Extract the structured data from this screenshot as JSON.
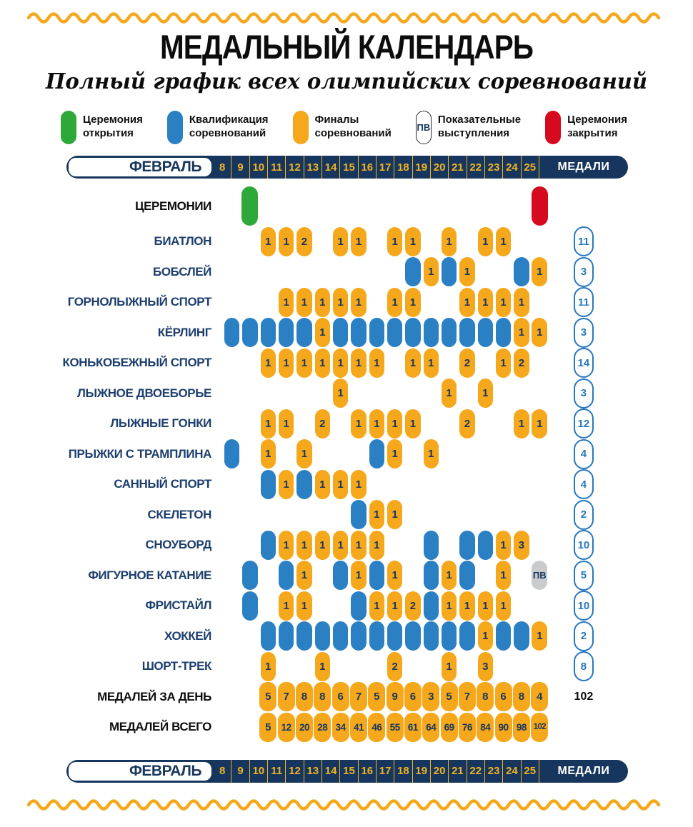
{
  "title": "МЕДАЛЬНЫЙ КАЛЕНДАРЬ",
  "subtitle": "Полный график всех олимпийских соревнований",
  "legend": {
    "items": [
      {
        "type": "open",
        "color": "#2EA838",
        "line1": "Церемония",
        "line2": "открытия"
      },
      {
        "type": "qual",
        "color": "#2B80C4",
        "line1": "Квалификация",
        "line2": "соревнований"
      },
      {
        "type": "fin",
        "color": "#F5A81C",
        "line1": "Финалы",
        "line2": "соревнований"
      },
      {
        "type": "pv",
        "badge": "ПВ",
        "line1": "Показательные",
        "line2": "выступления"
      },
      {
        "type": "close",
        "color": "#D50A1E",
        "line1": "Церемония",
        "line2": "закрытия"
      }
    ]
  },
  "header": {
    "month": "ФЕВРАЛЬ",
    "days": [
      "8",
      "9",
      "10",
      "11",
      "12",
      "13",
      "14",
      "15",
      "16",
      "17",
      "18",
      "19",
      "20",
      "21",
      "22",
      "23",
      "24",
      "25"
    ],
    "medals_label": "МЕДАЛИ"
  },
  "colors": {
    "navy": "#17365D",
    "gold": "#F5A81C",
    "blue": "#2B80C4",
    "green": "#2EA838",
    "red": "#D50A1E",
    "grey": "#C9CBCD",
    "medal_badge_blue": "#2878BE"
  },
  "chart_data": {
    "type": "table",
    "x_days": [
      8,
      9,
      10,
      11,
      12,
      13,
      14,
      15,
      16,
      17,
      18,
      19,
      20,
      21,
      22,
      23,
      24,
      25
    ],
    "cell_types": {
      "open": "Церемония открытия",
      "qual": "Квалификация соревнований",
      "fin": "Финалы соревнований",
      "pv": "Показательные выступления",
      "close": "Церемония закрытия"
    },
    "pv_label": "ПВ",
    "rows": [
      {
        "label": "ЦЕРЕМОНИИ",
        "dark": true,
        "tall": true,
        "medal": "",
        "cells": [
          {
            "d": 9,
            "t": "open"
          },
          {
            "d": 25,
            "t": "close"
          }
        ]
      },
      {
        "label": "БИАТЛОН",
        "medal": "11",
        "cells": [
          {
            "d": 10,
            "t": "fin",
            "v": "1"
          },
          {
            "d": 11,
            "t": "fin",
            "v": "1"
          },
          {
            "d": 12,
            "t": "fin",
            "v": "2"
          },
          {
            "d": 14,
            "t": "fin",
            "v": "1"
          },
          {
            "d": 15,
            "t": "fin",
            "v": "1"
          },
          {
            "d": 17,
            "t": "fin",
            "v": "1"
          },
          {
            "d": 18,
            "t": "fin",
            "v": "1"
          },
          {
            "d": 20,
            "t": "fin",
            "v": "1"
          },
          {
            "d": 22,
            "t": "fin",
            "v": "1"
          },
          {
            "d": 23,
            "t": "fin",
            "v": "1"
          }
        ]
      },
      {
        "label": "БОБСЛЕЙ",
        "medal": "3",
        "cells": [
          {
            "d": 18,
            "t": "qual"
          },
          {
            "d": 19,
            "t": "fin",
            "v": "1"
          },
          {
            "d": 20,
            "t": "qual"
          },
          {
            "d": 21,
            "t": "fin",
            "v": "1"
          },
          {
            "d": 24,
            "t": "qual"
          },
          {
            "d": 25,
            "t": "fin",
            "v": "1"
          }
        ]
      },
      {
        "label": "ГОРНОЛЫЖНЫЙ СПОРТ",
        "medal": "11",
        "cells": [
          {
            "d": 11,
            "t": "fin",
            "v": "1"
          },
          {
            "d": 12,
            "t": "fin",
            "v": "1"
          },
          {
            "d": 13,
            "t": "fin",
            "v": "1"
          },
          {
            "d": 14,
            "t": "fin",
            "v": "1"
          },
          {
            "d": 15,
            "t": "fin",
            "v": "1"
          },
          {
            "d": 17,
            "t": "fin",
            "v": "1"
          },
          {
            "d": 18,
            "t": "fin",
            "v": "1"
          },
          {
            "d": 21,
            "t": "fin",
            "v": "1"
          },
          {
            "d": 22,
            "t": "fin",
            "v": "1"
          },
          {
            "d": 23,
            "t": "fin",
            "v": "1"
          },
          {
            "d": 24,
            "t": "fin",
            "v": "1"
          }
        ]
      },
      {
        "label": "КЁРЛИНГ",
        "medal": "3",
        "cells": [
          {
            "d": 8,
            "t": "qual"
          },
          {
            "d": 9,
            "t": "qual"
          },
          {
            "d": 10,
            "t": "qual"
          },
          {
            "d": 11,
            "t": "qual"
          },
          {
            "d": 12,
            "t": "qual"
          },
          {
            "d": 13,
            "t": "fin",
            "v": "1"
          },
          {
            "d": 14,
            "t": "qual"
          },
          {
            "d": 15,
            "t": "qual"
          },
          {
            "d": 16,
            "t": "qual"
          },
          {
            "d": 17,
            "t": "qual"
          },
          {
            "d": 18,
            "t": "qual"
          },
          {
            "d": 19,
            "t": "qual"
          },
          {
            "d": 20,
            "t": "qual"
          },
          {
            "d": 21,
            "t": "qual"
          },
          {
            "d": 22,
            "t": "qual"
          },
          {
            "d": 23,
            "t": "qual"
          },
          {
            "d": 24,
            "t": "fin",
            "v": "1"
          },
          {
            "d": 25,
            "t": "fin",
            "v": "1"
          }
        ]
      },
      {
        "label": "КОНЬКОБЕЖНЫЙ СПОРТ",
        "medal": "14",
        "cells": [
          {
            "d": 10,
            "t": "fin",
            "v": "1"
          },
          {
            "d": 11,
            "t": "fin",
            "v": "1"
          },
          {
            "d": 12,
            "t": "fin",
            "v": "1"
          },
          {
            "d": 13,
            "t": "fin",
            "v": "1"
          },
          {
            "d": 14,
            "t": "fin",
            "v": "1"
          },
          {
            "d": 15,
            "t": "fin",
            "v": "1"
          },
          {
            "d": 16,
            "t": "fin",
            "v": "1"
          },
          {
            "d": 18,
            "t": "fin",
            "v": "1"
          },
          {
            "d": 19,
            "t": "fin",
            "v": "1"
          },
          {
            "d": 21,
            "t": "fin",
            "v": "2"
          },
          {
            "d": 23,
            "t": "fin",
            "v": "1"
          },
          {
            "d": 24,
            "t": "fin",
            "v": "2"
          }
        ]
      },
      {
        "label": "ЛЫЖНОЕ ДВОЕБОРЬЕ",
        "medal": "3",
        "cells": [
          {
            "d": 14,
            "t": "fin",
            "v": "1"
          },
          {
            "d": 20,
            "t": "fin",
            "v": "1"
          },
          {
            "d": 22,
            "t": "fin",
            "v": "1"
          }
        ]
      },
      {
        "label": "ЛЫЖНЫЕ ГОНКИ",
        "medal": "12",
        "cells": [
          {
            "d": 10,
            "t": "fin",
            "v": "1"
          },
          {
            "d": 11,
            "t": "fin",
            "v": "1"
          },
          {
            "d": 13,
            "t": "fin",
            "v": "2"
          },
          {
            "d": 15,
            "t": "fin",
            "v": "1"
          },
          {
            "d": 16,
            "t": "fin",
            "v": "1"
          },
          {
            "d": 17,
            "t": "fin",
            "v": "1"
          },
          {
            "d": 18,
            "t": "fin",
            "v": "1"
          },
          {
            "d": 21,
            "t": "fin",
            "v": "2"
          },
          {
            "d": 24,
            "t": "fin",
            "v": "1"
          },
          {
            "d": 25,
            "t": "fin",
            "v": "1"
          }
        ]
      },
      {
        "label": "ПРЫЖКИ С ТРАМПЛИНА",
        "medal": "4",
        "cells": [
          {
            "d": 8,
            "t": "qual"
          },
          {
            "d": 10,
            "t": "fin",
            "v": "1"
          },
          {
            "d": 12,
            "t": "fin",
            "v": "1"
          },
          {
            "d": 16,
            "t": "qual"
          },
          {
            "d": 17,
            "t": "fin",
            "v": "1"
          },
          {
            "d": 19,
            "t": "fin",
            "v": "1"
          }
        ]
      },
      {
        "label": "САННЫЙ СПОРТ",
        "medal": "4",
        "cells": [
          {
            "d": 10,
            "t": "qual"
          },
          {
            "d": 11,
            "t": "fin",
            "v": "1"
          },
          {
            "d": 12,
            "t": "qual"
          },
          {
            "d": 13,
            "t": "fin",
            "v": "1"
          },
          {
            "d": 14,
            "t": "fin",
            "v": "1"
          },
          {
            "d": 15,
            "t": "fin",
            "v": "1"
          }
        ]
      },
      {
        "label": "СКЕЛЕТОН",
        "medal": "2",
        "cells": [
          {
            "d": 15,
            "t": "qual"
          },
          {
            "d": 16,
            "t": "fin",
            "v": "1"
          },
          {
            "d": 17,
            "t": "fin",
            "v": "1"
          }
        ]
      },
      {
        "label": "СНОУБОРД",
        "medal": "10",
        "cells": [
          {
            "d": 10,
            "t": "qual"
          },
          {
            "d": 11,
            "t": "fin",
            "v": "1"
          },
          {
            "d": 12,
            "t": "fin",
            "v": "1"
          },
          {
            "d": 13,
            "t": "fin",
            "v": "1"
          },
          {
            "d": 14,
            "t": "fin",
            "v": "1"
          },
          {
            "d": 15,
            "t": "fin",
            "v": "1"
          },
          {
            "d": 16,
            "t": "fin",
            "v": "1"
          },
          {
            "d": 19,
            "t": "qual"
          },
          {
            "d": 21,
            "t": "qual"
          },
          {
            "d": 22,
            "t": "qual"
          },
          {
            "d": 23,
            "t": "fin",
            "v": "1"
          },
          {
            "d": 24,
            "t": "fin",
            "v": "3"
          }
        ]
      },
      {
        "label": "ФИГУРНОЕ КАТАНИЕ",
        "medal": "5",
        "cells": [
          {
            "d": 9,
            "t": "qual"
          },
          {
            "d": 11,
            "t": "qual"
          },
          {
            "d": 12,
            "t": "fin",
            "v": "1"
          },
          {
            "d": 14,
            "t": "qual"
          },
          {
            "d": 15,
            "t": "fin",
            "v": "1"
          },
          {
            "d": 16,
            "t": "qual"
          },
          {
            "d": 17,
            "t": "fin",
            "v": "1"
          },
          {
            "d": 19,
            "t": "qual"
          },
          {
            "d": 20,
            "t": "fin",
            "v": "1"
          },
          {
            "d": 21,
            "t": "qual"
          },
          {
            "d": 23,
            "t": "fin",
            "v": "1"
          },
          {
            "d": 25,
            "t": "pv"
          }
        ]
      },
      {
        "label": "ФРИСТАЙЛ",
        "medal": "10",
        "cells": [
          {
            "d": 9,
            "t": "qual"
          },
          {
            "d": 11,
            "t": "fin",
            "v": "1"
          },
          {
            "d": 12,
            "t": "fin",
            "v": "1"
          },
          {
            "d": 15,
            "t": "qual"
          },
          {
            "d": 16,
            "t": "fin",
            "v": "1"
          },
          {
            "d": 17,
            "t": "fin",
            "v": "1"
          },
          {
            "d": 18,
            "t": "fin",
            "v": "2"
          },
          {
            "d": 19,
            "t": "qual"
          },
          {
            "d": 20,
            "t": "fin",
            "v": "1"
          },
          {
            "d": 21,
            "t": "fin",
            "v": "1"
          },
          {
            "d": 22,
            "t": "fin",
            "v": "1"
          },
          {
            "d": 23,
            "t": "fin",
            "v": "1"
          }
        ]
      },
      {
        "label": "ХОККЕЙ",
        "medal": "2",
        "cells": [
          {
            "d": 10,
            "t": "qual"
          },
          {
            "d": 11,
            "t": "qual"
          },
          {
            "d": 12,
            "t": "qual"
          },
          {
            "d": 13,
            "t": "qual"
          },
          {
            "d": 14,
            "t": "qual"
          },
          {
            "d": 15,
            "t": "qual"
          },
          {
            "d": 16,
            "t": "qual"
          },
          {
            "d": 17,
            "t": "qual"
          },
          {
            "d": 18,
            "t": "qual"
          },
          {
            "d": 19,
            "t": "qual"
          },
          {
            "d": 20,
            "t": "qual"
          },
          {
            "d": 21,
            "t": "qual"
          },
          {
            "d": 22,
            "t": "fin",
            "v": "1"
          },
          {
            "d": 23,
            "t": "qual"
          },
          {
            "d": 24,
            "t": "qual"
          },
          {
            "d": 25,
            "t": "fin",
            "v": "1"
          }
        ]
      },
      {
        "label": "ШОРТ-ТРЕК",
        "medal": "8",
        "cells": [
          {
            "d": 10,
            "t": "fin",
            "v": "1"
          },
          {
            "d": 13,
            "t": "fin",
            "v": "1"
          },
          {
            "d": 17,
            "t": "fin",
            "v": "2"
          },
          {
            "d": 20,
            "t": "fin",
            "v": "1"
          },
          {
            "d": 22,
            "t": "fin",
            "v": "3"
          }
        ]
      },
      {
        "label": "МЕДАЛЕЙ ЗА ДЕНЬ",
        "dark": true,
        "medal": "102",
        "medal_plain": true,
        "wide": true,
        "cells": [
          {
            "d": 10,
            "t": "fin",
            "v": "5"
          },
          {
            "d": 11,
            "t": "fin",
            "v": "7"
          },
          {
            "d": 12,
            "t": "fin",
            "v": "8"
          },
          {
            "d": 13,
            "t": "fin",
            "v": "8"
          },
          {
            "d": 14,
            "t": "fin",
            "v": "6"
          },
          {
            "d": 15,
            "t": "fin",
            "v": "7"
          },
          {
            "d": 16,
            "t": "fin",
            "v": "5"
          },
          {
            "d": 17,
            "t": "fin",
            "v": "9"
          },
          {
            "d": 18,
            "t": "fin",
            "v": "6"
          },
          {
            "d": 19,
            "t": "fin",
            "v": "3"
          },
          {
            "d": 20,
            "t": "fin",
            "v": "5"
          },
          {
            "d": 21,
            "t": "fin",
            "v": "7"
          },
          {
            "d": 22,
            "t": "fin",
            "v": "8"
          },
          {
            "d": 23,
            "t": "fin",
            "v": "6"
          },
          {
            "d": 24,
            "t": "fin",
            "v": "8"
          },
          {
            "d": 25,
            "t": "fin",
            "v": "4"
          }
        ]
      },
      {
        "label": "МЕДАЛЕЙ ВСЕГО",
        "dark": true,
        "medal": "",
        "wide": true,
        "cells": [
          {
            "d": 10,
            "t": "fin",
            "v": "5"
          },
          {
            "d": 11,
            "t": "fin",
            "v": "12"
          },
          {
            "d": 12,
            "t": "fin",
            "v": "20"
          },
          {
            "d": 13,
            "t": "fin",
            "v": "28"
          },
          {
            "d": 14,
            "t": "fin",
            "v": "34"
          },
          {
            "d": 15,
            "t": "fin",
            "v": "41"
          },
          {
            "d": 16,
            "t": "fin",
            "v": "46"
          },
          {
            "d": 17,
            "t": "fin",
            "v": "55"
          },
          {
            "d": 18,
            "t": "fin",
            "v": "61"
          },
          {
            "d": 19,
            "t": "fin",
            "v": "64"
          },
          {
            "d": 20,
            "t": "fin",
            "v": "69"
          },
          {
            "d": 21,
            "t": "fin",
            "v": "76"
          },
          {
            "d": 22,
            "t": "fin",
            "v": "84"
          },
          {
            "d": 23,
            "t": "fin",
            "v": "90"
          },
          {
            "d": 24,
            "t": "fin",
            "v": "98"
          },
          {
            "d": 25,
            "t": "fin",
            "v": "102"
          }
        ]
      }
    ]
  }
}
